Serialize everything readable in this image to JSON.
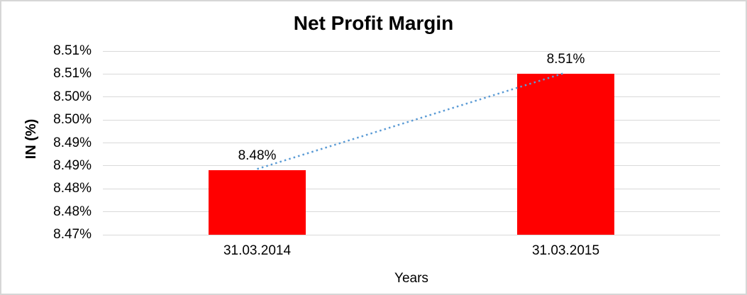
{
  "chart_data": {
    "type": "bar",
    "title": "Net Profit Margin",
    "xlabel": "Years",
    "ylabel": "IN (%)",
    "categories": [
      "31.03.2014",
      "31.03.2015"
    ],
    "values": [
      8.484,
      8.505
    ],
    "data_labels": [
      "8.48%",
      "8.51%"
    ],
    "y_ticks_top_to_bottom": [
      "8.51%",
      "8.51%",
      "8.50%",
      "8.50%",
      "8.49%",
      "8.49%",
      "8.48%",
      "8.48%",
      "8.47%"
    ],
    "ylim": [
      8.47,
      8.51
    ],
    "grid": true,
    "legend": "none",
    "bar_color": "#ff0000",
    "gridline_color": "#d9d9d9",
    "trendline": {
      "style": "dotted",
      "color": "#5b9bd5",
      "from_value": 8.484,
      "to_value": 8.505
    }
  }
}
